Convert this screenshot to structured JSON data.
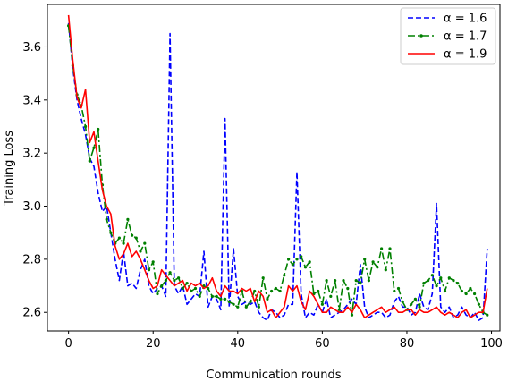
{
  "chart_data": {
    "type": "line",
    "xlabel": "Communication rounds",
    "ylabel": "Training Loss",
    "xlim": [
      -5,
      102
    ],
    "ylim": [
      2.53,
      3.76
    ],
    "xticks": [
      0,
      20,
      40,
      60,
      80,
      100
    ],
    "yticks": [
      2.6,
      2.8,
      3.0,
      3.2,
      3.4,
      3.6
    ],
    "xtick_labels": [
      "0",
      "20",
      "40",
      "60",
      "80",
      "100"
    ],
    "ytick_labels": [
      "2.6",
      "2.8",
      "3.0",
      "3.2",
      "3.4",
      "3.6"
    ],
    "grid": false,
    "legend_position": "top-right",
    "series": [
      {
        "name": "α = 1.6",
        "color": "#0000ff",
        "style": "dashed",
        "marker": "none",
        "x": [
          0,
          1,
          2,
          3,
          4,
          5,
          6,
          7,
          8,
          9,
          10,
          11,
          12,
          13,
          14,
          15,
          16,
          17,
          18,
          19,
          20,
          21,
          22,
          23,
          24,
          25,
          26,
          27,
          28,
          29,
          30,
          31,
          32,
          33,
          34,
          35,
          36,
          37,
          38,
          39,
          40,
          41,
          42,
          43,
          44,
          45,
          46,
          47,
          48,
          49,
          50,
          51,
          52,
          53,
          54,
          55,
          56,
          57,
          58,
          59,
          60,
          61,
          62,
          63,
          64,
          65,
          66,
          67,
          68,
          69,
          70,
          71,
          72,
          73,
          74,
          75,
          76,
          77,
          78,
          79,
          80,
          81,
          82,
          83,
          84,
          85,
          86,
          87,
          88,
          89,
          90,
          91,
          92,
          93,
          94,
          95,
          96,
          97,
          98,
          99
        ],
        "y": [
          3.69,
          3.52,
          3.4,
          3.33,
          3.27,
          3.18,
          3.15,
          3.05,
          2.98,
          3.0,
          2.9,
          2.8,
          2.72,
          2.83,
          2.7,
          2.71,
          2.69,
          2.76,
          2.8,
          2.7,
          2.67,
          2.69,
          2.7,
          2.66,
          3.65,
          2.7,
          2.67,
          2.7,
          2.63,
          2.65,
          2.67,
          2.66,
          2.83,
          2.62,
          2.66,
          2.65,
          2.61,
          3.33,
          2.62,
          2.84,
          2.66,
          2.63,
          2.64,
          2.63,
          2.64,
          2.6,
          2.58,
          2.57,
          2.61,
          2.6,
          2.58,
          2.59,
          2.63,
          2.63,
          3.13,
          2.67,
          2.58,
          2.6,
          2.59,
          2.63,
          2.6,
          2.65,
          2.58,
          2.59,
          2.6,
          2.61,
          2.63,
          2.65,
          2.63,
          2.78,
          2.62,
          2.58,
          2.59,
          2.6,
          2.6,
          2.58,
          2.59,
          2.64,
          2.66,
          2.62,
          2.62,
          2.59,
          2.6,
          2.67,
          2.62,
          2.61,
          2.67,
          3.01,
          2.62,
          2.6,
          2.62,
          2.58,
          2.59,
          2.62,
          2.59,
          2.58,
          2.6,
          2.57,
          2.58,
          2.84
        ]
      },
      {
        "name": "α = 1.7",
        "color": "#008000",
        "style": "dashdot",
        "marker": "dot",
        "x": [
          0,
          1,
          2,
          3,
          4,
          5,
          6,
          7,
          8,
          9,
          10,
          11,
          12,
          13,
          14,
          15,
          16,
          17,
          18,
          19,
          20,
          21,
          22,
          23,
          24,
          25,
          26,
          27,
          28,
          29,
          30,
          31,
          32,
          33,
          34,
          35,
          36,
          37,
          38,
          39,
          40,
          41,
          42,
          43,
          44,
          45,
          46,
          47,
          48,
          49,
          50,
          51,
          52,
          53,
          54,
          55,
          56,
          57,
          58,
          59,
          60,
          61,
          62,
          63,
          64,
          65,
          66,
          67,
          68,
          69,
          70,
          71,
          72,
          73,
          74,
          75,
          76,
          77,
          78,
          79,
          80,
          81,
          82,
          83,
          84,
          85,
          86,
          87,
          88,
          89,
          90,
          91,
          92,
          93,
          94,
          95,
          96,
          97,
          98,
          99
        ],
        "y": [
          3.68,
          3.53,
          3.42,
          3.38,
          3.3,
          3.17,
          3.22,
          3.29,
          3.08,
          2.95,
          2.9,
          2.86,
          2.88,
          2.86,
          2.95,
          2.89,
          2.88,
          2.83,
          2.86,
          2.76,
          2.79,
          2.67,
          2.7,
          2.72,
          2.75,
          2.72,
          2.73,
          2.69,
          2.71,
          2.68,
          2.69,
          2.66,
          2.7,
          2.69,
          2.66,
          2.66,
          2.65,
          2.65,
          2.64,
          2.63,
          2.62,
          2.68,
          2.62,
          2.64,
          2.68,
          2.62,
          2.73,
          2.65,
          2.68,
          2.69,
          2.68,
          2.74,
          2.8,
          2.78,
          2.8,
          2.81,
          2.77,
          2.79,
          2.67,
          2.68,
          2.63,
          2.72,
          2.66,
          2.72,
          2.61,
          2.72,
          2.69,
          2.59,
          2.72,
          2.71,
          2.8,
          2.72,
          2.79,
          2.77,
          2.84,
          2.76,
          2.84,
          2.68,
          2.69,
          2.64,
          2.61,
          2.63,
          2.65,
          2.62,
          2.71,
          2.72,
          2.74,
          2.7,
          2.73,
          2.68,
          2.73,
          2.72,
          2.71,
          2.68,
          2.67,
          2.69,
          2.67,
          2.63,
          2.6,
          2.59
        ]
      },
      {
        "name": "α = 1.9",
        "color": "#ff0000",
        "style": "solid",
        "marker": "none",
        "x": [
          0,
          1,
          2,
          3,
          4,
          5,
          6,
          7,
          8,
          9,
          10,
          11,
          12,
          13,
          14,
          15,
          16,
          17,
          18,
          19,
          20,
          21,
          22,
          23,
          24,
          25,
          26,
          27,
          28,
          29,
          30,
          31,
          32,
          33,
          34,
          35,
          36,
          37,
          38,
          39,
          40,
          41,
          42,
          43,
          44,
          45,
          46,
          47,
          48,
          49,
          50,
          51,
          52,
          53,
          54,
          55,
          56,
          57,
          58,
          59,
          60,
          61,
          62,
          63,
          64,
          65,
          66,
          67,
          68,
          69,
          70,
          71,
          72,
          73,
          74,
          75,
          76,
          77,
          78,
          79,
          80,
          81,
          82,
          83,
          84,
          85,
          86,
          87,
          88,
          89,
          90,
          91,
          92,
          93,
          94,
          95,
          96,
          97,
          98,
          99
        ],
        "y": [
          3.72,
          3.55,
          3.41,
          3.37,
          3.44,
          3.24,
          3.28,
          3.17,
          3.06,
          3.0,
          2.97,
          2.85,
          2.8,
          2.82,
          2.86,
          2.81,
          2.83,
          2.8,
          2.76,
          2.72,
          2.69,
          2.7,
          2.76,
          2.74,
          2.72,
          2.7,
          2.71,
          2.72,
          2.68,
          2.71,
          2.7,
          2.71,
          2.69,
          2.7,
          2.73,
          2.68,
          2.66,
          2.7,
          2.68,
          2.68,
          2.67,
          2.69,
          2.68,
          2.69,
          2.64,
          2.68,
          2.66,
          2.6,
          2.61,
          2.58,
          2.6,
          2.62,
          2.7,
          2.68,
          2.7,
          2.64,
          2.61,
          2.68,
          2.66,
          2.63,
          2.6,
          2.6,
          2.62,
          2.61,
          2.6,
          2.6,
          2.62,
          2.6,
          2.63,
          2.61,
          2.58,
          2.59,
          2.6,
          2.61,
          2.62,
          2.6,
          2.61,
          2.62,
          2.6,
          2.6,
          2.61,
          2.61,
          2.59,
          2.61,
          2.6,
          2.6,
          2.61,
          2.62,
          2.6,
          2.59,
          2.6,
          2.59,
          2.58,
          2.6,
          2.61,
          2.58,
          2.59,
          2.6,
          2.6,
          2.69
        ]
      }
    ]
  }
}
